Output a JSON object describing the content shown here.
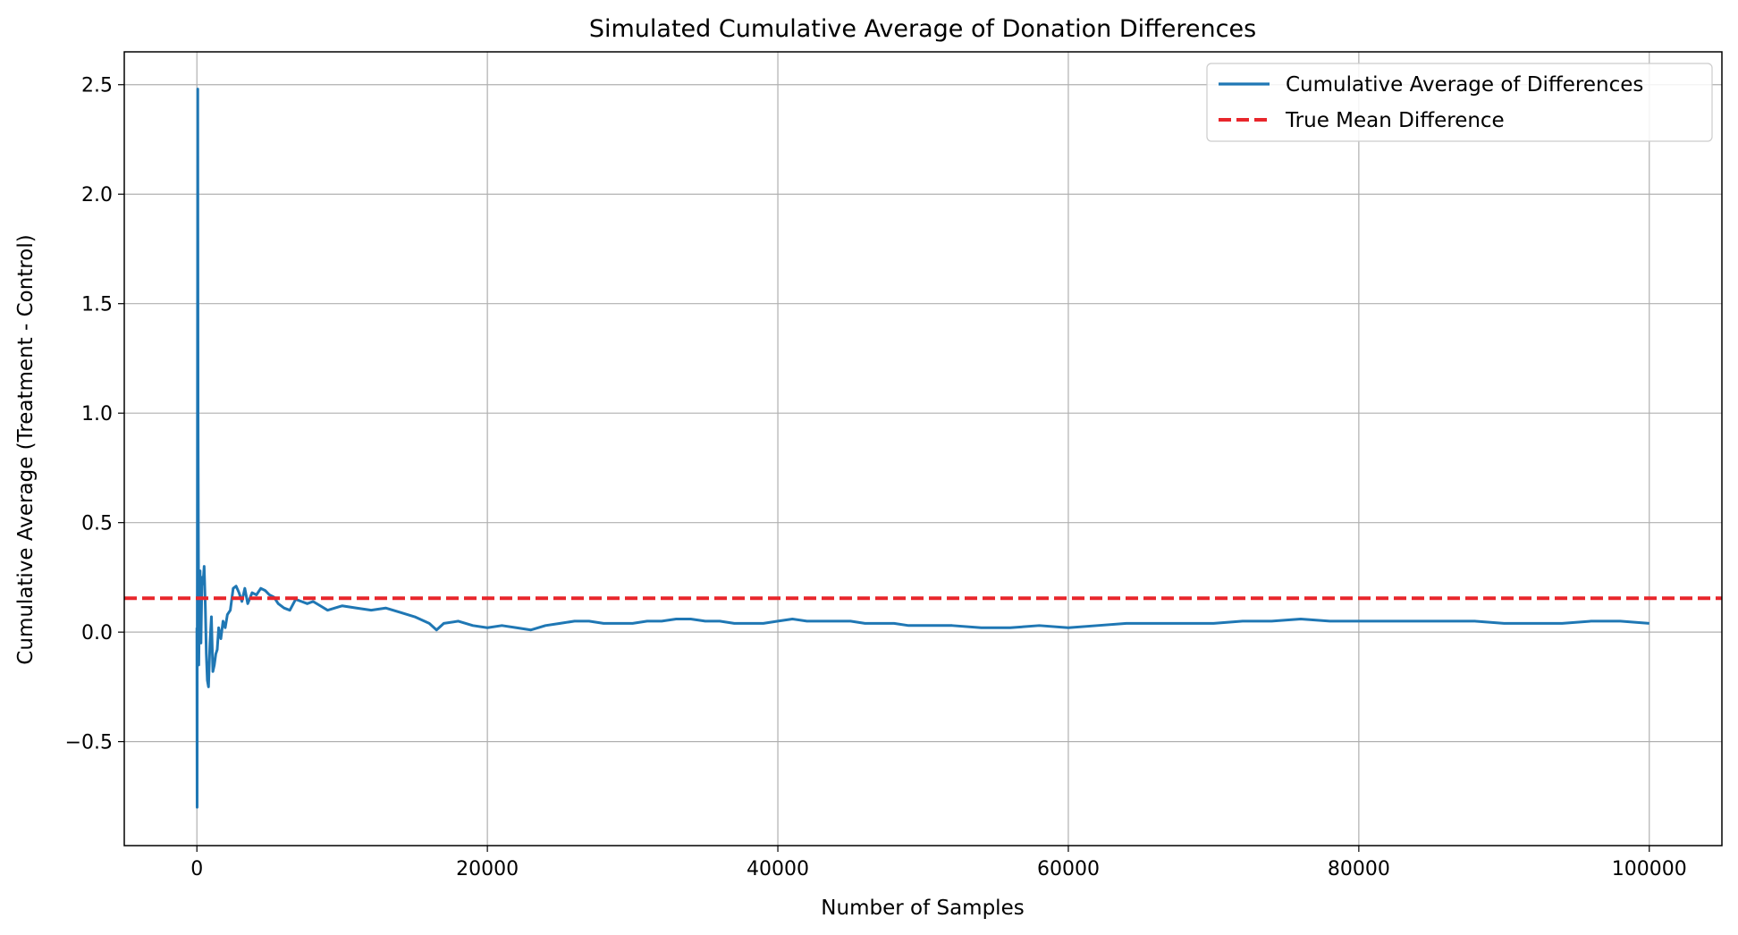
{
  "chart_data": {
    "type": "line",
    "title": "Simulated Cumulative Average of Donation Differences",
    "xlabel": "Number of Samples",
    "ylabel": "Cumulative Average (Treatment - Control)",
    "xlim": [
      -5000,
      105000
    ],
    "ylim": [
      -0.975,
      2.65
    ],
    "xticks": [
      0,
      20000,
      40000,
      60000,
      80000,
      100000
    ],
    "xtick_labels": [
      "0",
      "20000",
      "40000",
      "60000",
      "80000",
      "100000"
    ],
    "yticks": [
      -0.5,
      0.0,
      0.5,
      1.0,
      1.5,
      2.0,
      2.5
    ],
    "ytick_labels": [
      "−0.5",
      "0.0",
      "0.5",
      "1.0",
      "1.5",
      "2.0",
      "2.5"
    ],
    "grid": true,
    "legend_position": "top-right",
    "series": [
      {
        "name": "Cumulative Average of Differences",
        "color": "#1f77b4",
        "style": "solid",
        "x": [
          1,
          15,
          30,
          45,
          60,
          80,
          100,
          130,
          170,
          220,
          280,
          350,
          420,
          500,
          580,
          650,
          720,
          800,
          900,
          1000,
          1100,
          1200,
          1300,
          1400,
          1500,
          1650,
          1800,
          1950,
          2100,
          2300,
          2500,
          2700,
          2900,
          3100,
          3300,
          3500,
          3800,
          4100,
          4400,
          4700,
          5000,
          5300,
          5600,
          6000,
          6400,
          6800,
          7200,
          7600,
          8000,
          8500,
          9000,
          9500,
          10000,
          11000,
          12000,
          13000,
          14000,
          15000,
          16000,
          16500,
          17000,
          18000,
          19000,
          20000,
          21000,
          22000,
          23000,
          24000,
          25000,
          26000,
          27000,
          28000,
          29000,
          30000,
          31000,
          32000,
          33000,
          34000,
          35000,
          36000,
          37000,
          38000,
          39000,
          40000,
          41000,
          42000,
          43000,
          44000,
          45000,
          46000,
          47000,
          48000,
          49000,
          50000,
          52000,
          54000,
          56000,
          58000,
          60000,
          62000,
          64000,
          66000,
          68000,
          70000,
          72000,
          74000,
          76000,
          78000,
          80000,
          82000,
          84000,
          86000,
          88000,
          90000,
          92000,
          94000,
          96000,
          98000,
          100000
        ],
        "values": [
          0.02,
          -0.8,
          0.3,
          1.5,
          2.48,
          1.0,
          0.5,
          -0.15,
          0.1,
          0.28,
          -0.05,
          0.25,
          0.22,
          0.3,
          0.12,
          -0.1,
          -0.22,
          -0.25,
          -0.05,
          0.07,
          -0.18,
          -0.15,
          -0.1,
          -0.08,
          0.02,
          -0.03,
          0.05,
          0.02,
          0.08,
          0.1,
          0.2,
          0.21,
          0.18,
          0.14,
          0.2,
          0.13,
          0.18,
          0.17,
          0.2,
          0.19,
          0.17,
          0.16,
          0.13,
          0.11,
          0.1,
          0.15,
          0.14,
          0.13,
          0.14,
          0.12,
          0.1,
          0.11,
          0.12,
          0.11,
          0.1,
          0.11,
          0.09,
          0.07,
          0.04,
          0.01,
          0.04,
          0.05,
          0.03,
          0.02,
          0.03,
          0.02,
          0.01,
          0.03,
          0.04,
          0.05,
          0.05,
          0.04,
          0.04,
          0.04,
          0.05,
          0.05,
          0.06,
          0.06,
          0.05,
          0.05,
          0.04,
          0.04,
          0.04,
          0.05,
          0.06,
          0.05,
          0.05,
          0.05,
          0.05,
          0.04,
          0.04,
          0.04,
          0.03,
          0.03,
          0.03,
          0.02,
          0.02,
          0.03,
          0.02,
          0.03,
          0.04,
          0.04,
          0.04,
          0.04,
          0.05,
          0.05,
          0.06,
          0.05,
          0.05,
          0.05,
          0.05,
          0.05,
          0.05,
          0.04,
          0.04,
          0.04,
          0.05,
          0.05,
          0.04
        ]
      },
      {
        "name": "True Mean Difference",
        "color": "#e8262b",
        "style": "dashed",
        "constant": 0.155
      }
    ]
  }
}
